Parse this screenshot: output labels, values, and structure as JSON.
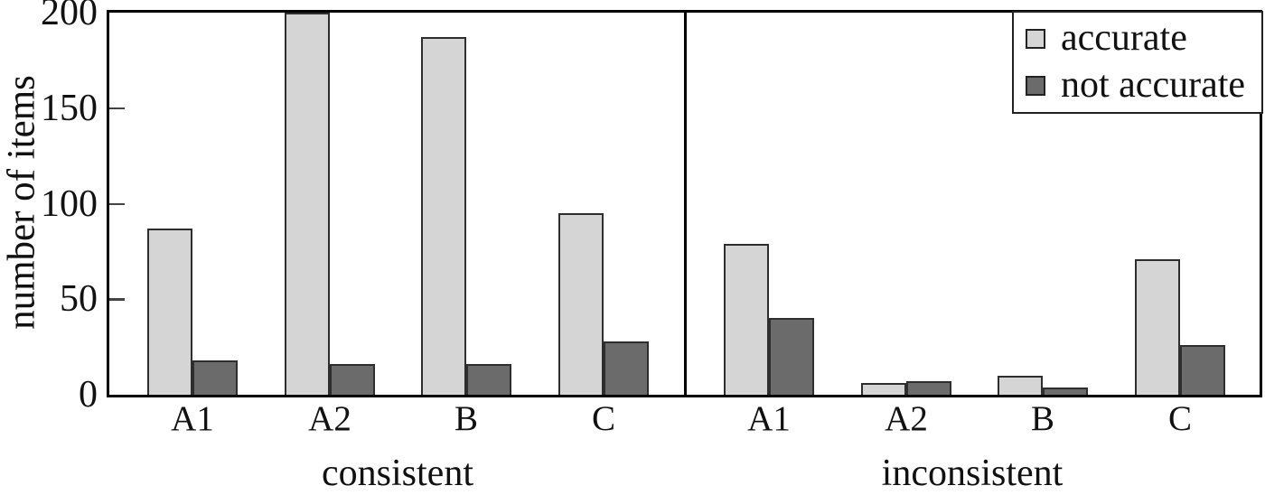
{
  "colors": {
    "accurate": "#d5d5d5",
    "not_accurate": "#6b6b6b",
    "bar_border": "#2e2e2e",
    "frame": "#000000"
  },
  "chart_data": {
    "type": "bar",
    "title": "",
    "xlabel": "",
    "ylabel": "number of items",
    "ylim": [
      0,
      200
    ],
    "yticks": [
      0,
      50,
      100,
      150,
      200
    ],
    "grid": false,
    "legend": {
      "position": "top-right",
      "entries": [
        {
          "label": "accurate",
          "color": "#d5d5d5"
        },
        {
          "label": "not accurate",
          "color": "#6b6b6b"
        }
      ]
    },
    "panels": [
      {
        "label": "consistent",
        "categories": [
          "A1",
          "A2",
          "B",
          "C"
        ],
        "series": [
          {
            "name": "accurate",
            "values": [
              87,
              200,
              187,
              95
            ]
          },
          {
            "name": "not accurate",
            "values": [
              18,
              16,
              16,
              28
            ]
          }
        ]
      },
      {
        "label": "inconsistent",
        "categories": [
          "A1",
          "A2",
          "B",
          "C"
        ],
        "series": [
          {
            "name": "accurate",
            "values": [
              79,
              6,
              10,
              71
            ]
          },
          {
            "name": "not accurate",
            "values": [
              40,
              7,
              4,
              26
            ]
          }
        ]
      }
    ]
  }
}
